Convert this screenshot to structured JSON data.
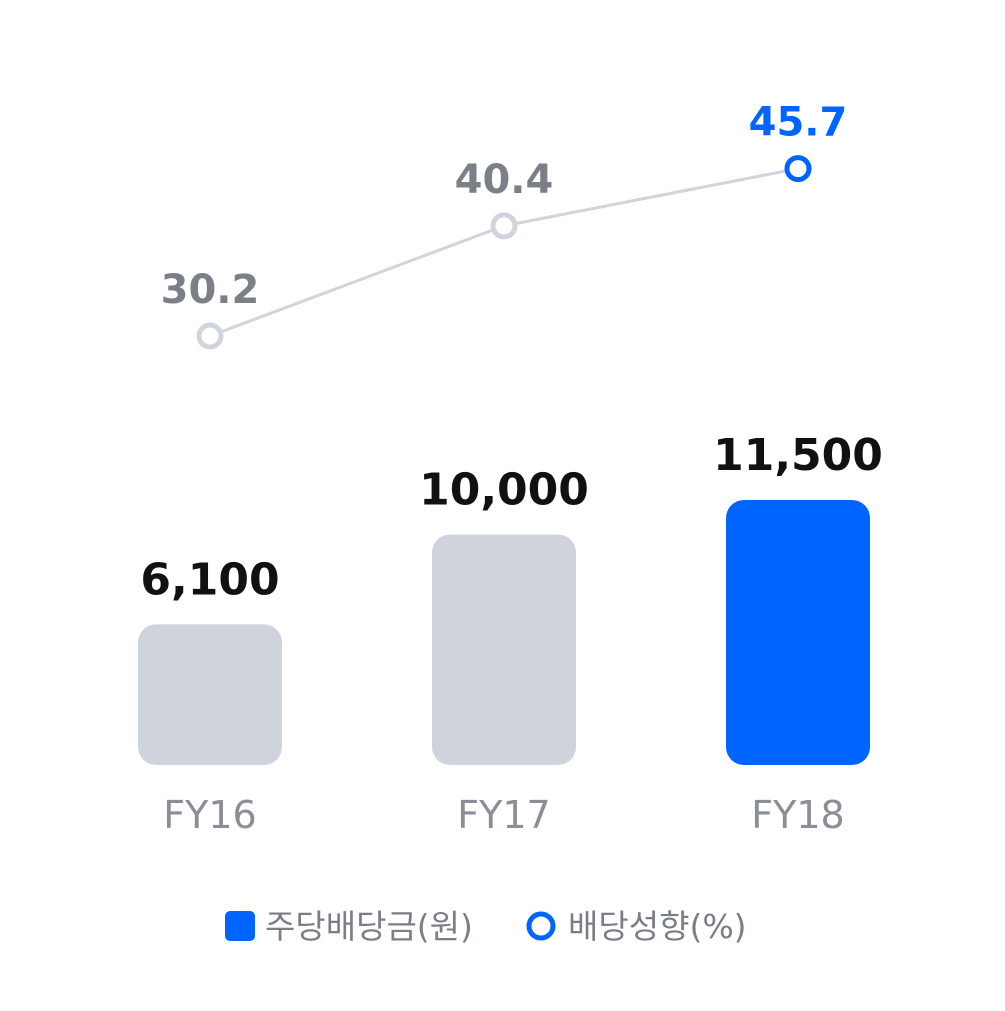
{
  "chart_data": {
    "type": "bar",
    "categories": [
      "FY16",
      "FY17",
      "FY18"
    ],
    "series": [
      {
        "name": "주당배당금(원)",
        "type": "bar",
        "values": [
          6100,
          10000,
          11500
        ],
        "value_labels": [
          "6,100",
          "10,000",
          "11,500"
        ]
      },
      {
        "name": "배당성향(%)",
        "type": "line",
        "values": [
          30.2,
          40.4,
          45.7
        ],
        "value_labels": [
          "30.2",
          "40.4",
          "45.7"
        ]
      }
    ],
    "legend_position": "bottom-center",
    "grid": false
  },
  "colors": {
    "highlight": "#0064ff",
    "bar_muted": "#ced3dc",
    "line_muted": "#d0d4dc",
    "line_label_muted": "#7b7f88",
    "bar_label": "#111111",
    "axis_label": "#8a8e97"
  }
}
